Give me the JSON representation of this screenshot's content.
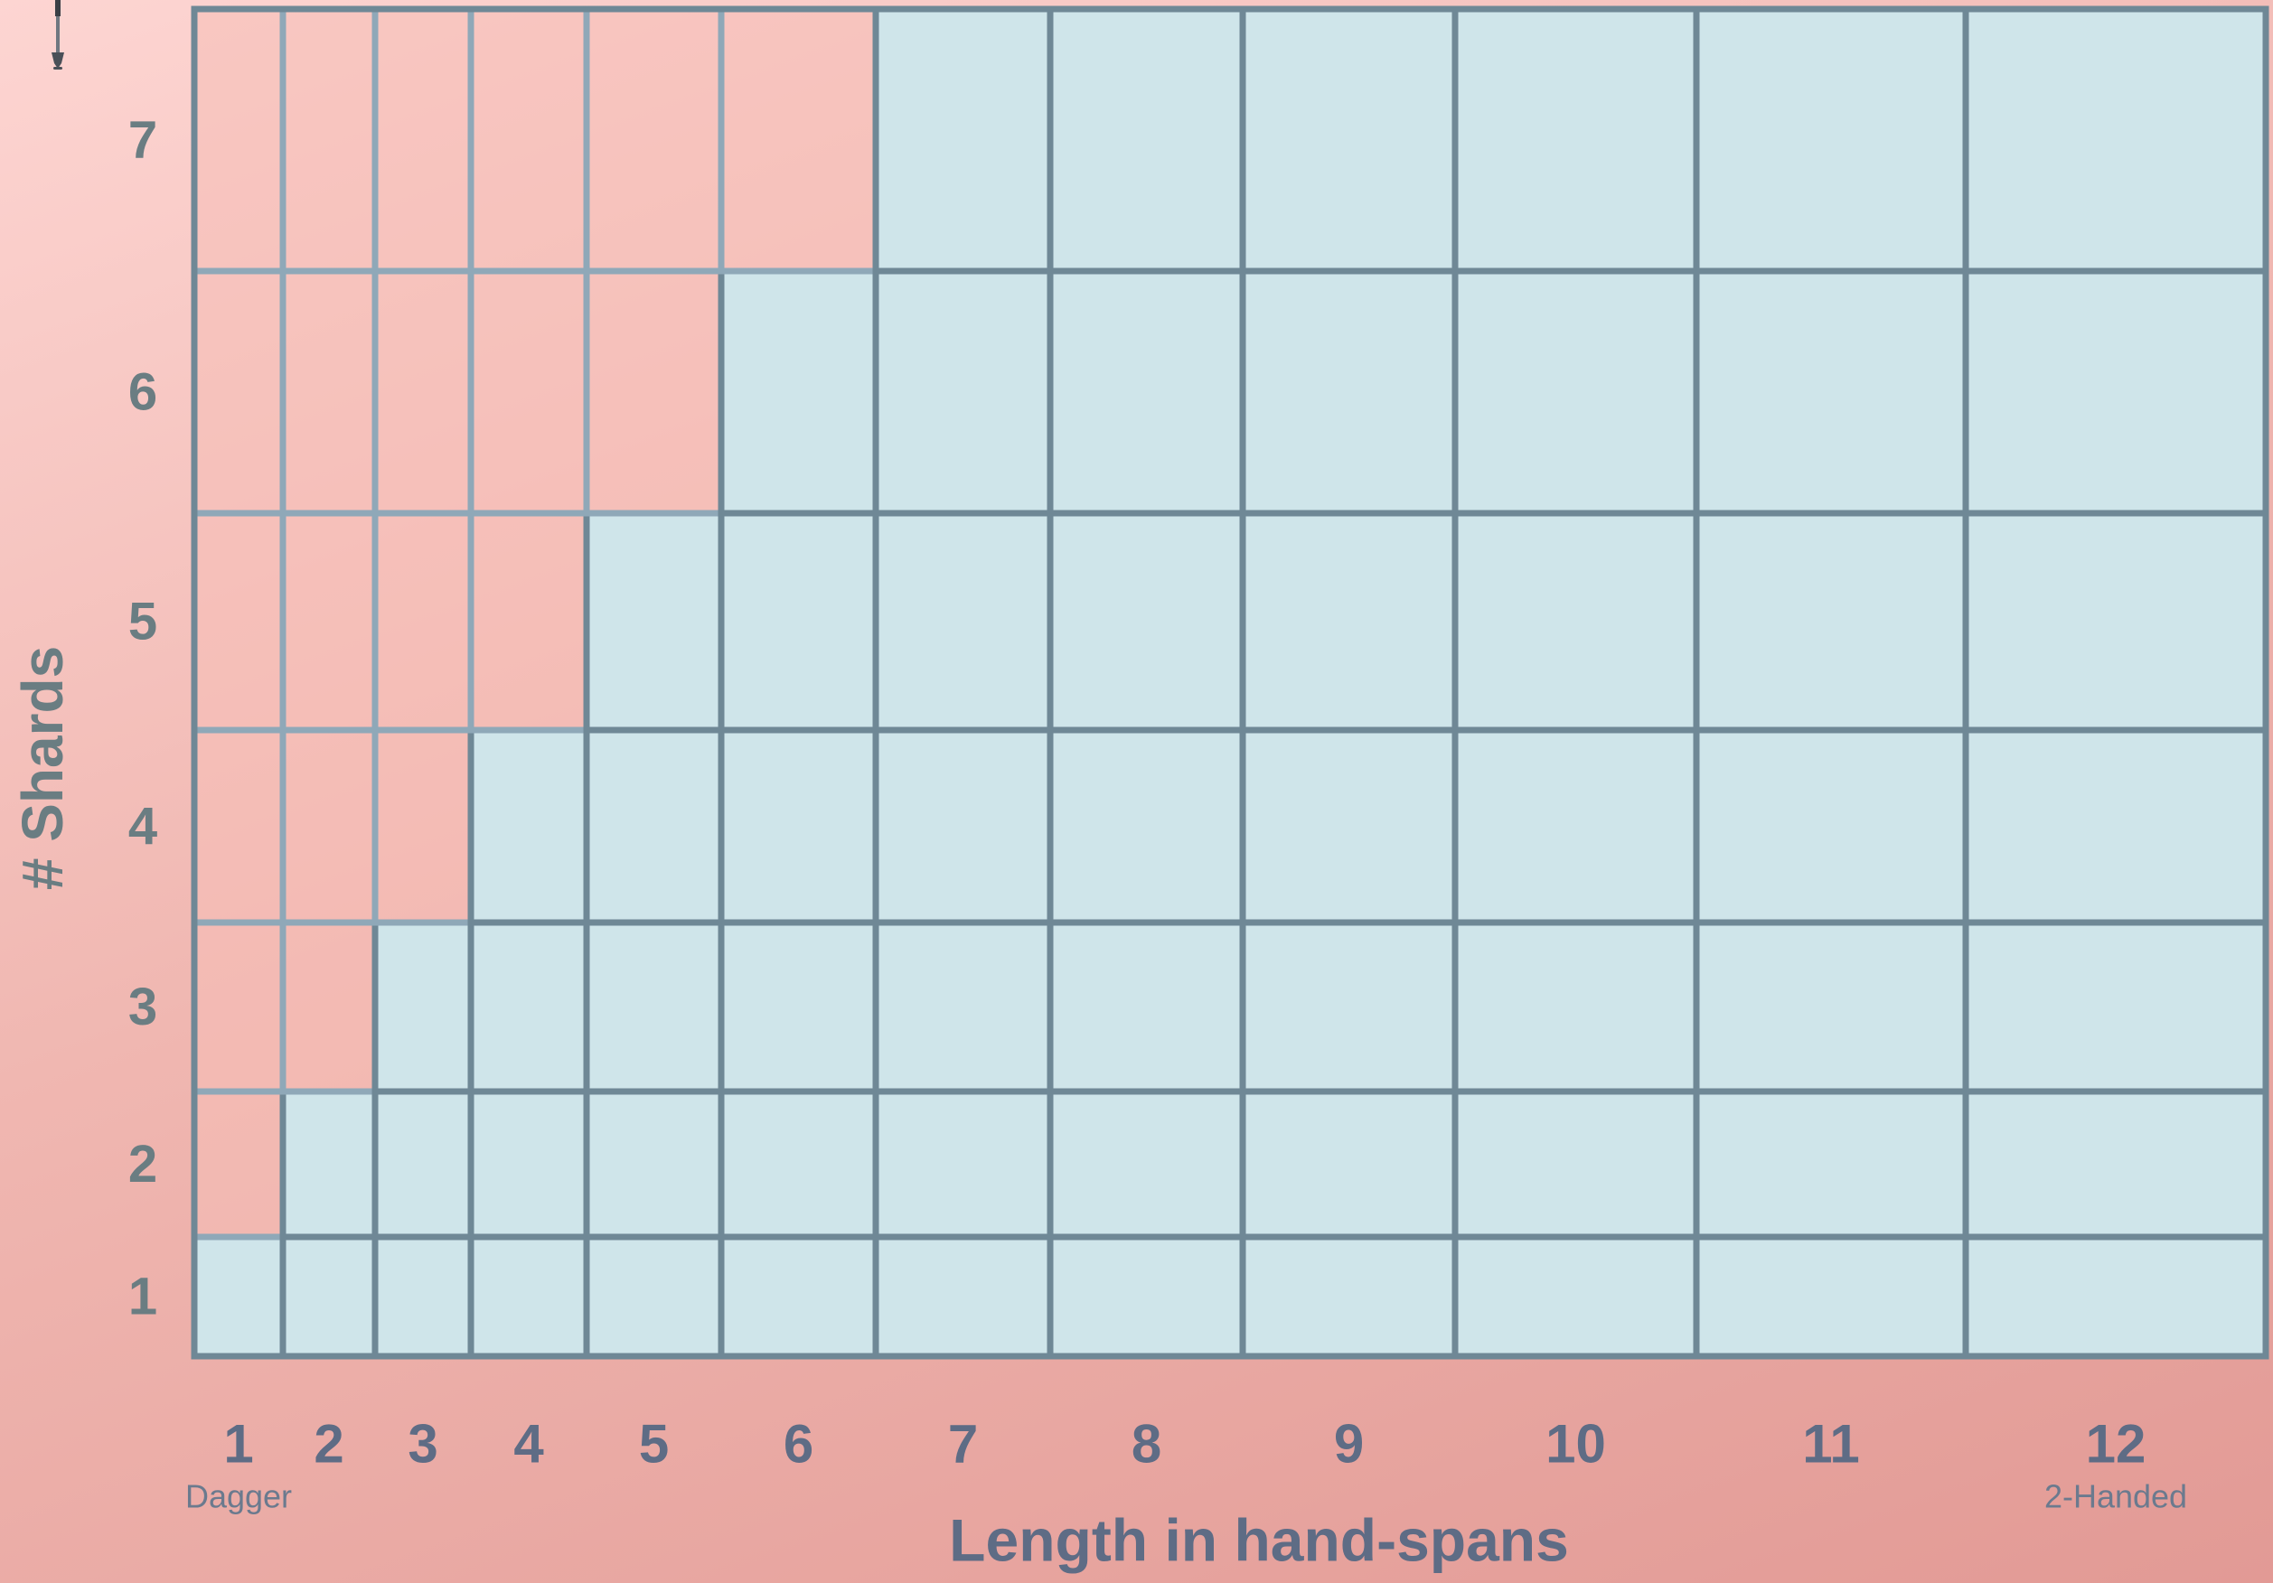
{
  "chart_data": {
    "type": "heatmap",
    "title": "",
    "xlabel": "Length in hand-spans",
    "ylabel": "# Shards",
    "x_categories": [
      "1",
      "2",
      "3",
      "4",
      "5",
      "6",
      "7",
      "8",
      "9",
      "10",
      "11",
      "12"
    ],
    "y_categories": [
      "1",
      "2",
      "3",
      "4",
      "5",
      "6",
      "7"
    ],
    "x_annotations": [
      {
        "x": "1",
        "text": "Dagger"
      },
      {
        "x": "12",
        "text": "2-Handed"
      }
    ],
    "highlight_rule": "cells with length < shards",
    "cell_colors": {
      "base": "#cfe5ea",
      "highlight": "#f5bdb7",
      "grid": "#6f8896",
      "grid_highlight": "#8fa8b8"
    },
    "grid": true
  }
}
